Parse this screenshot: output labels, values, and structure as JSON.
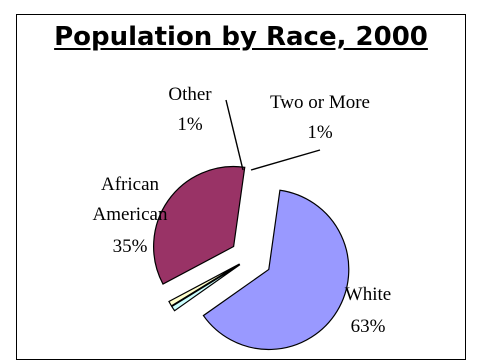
{
  "chart_data": {
    "type": "pie",
    "title": "Population by Race, 2000",
    "legend": "none",
    "slices": [
      {
        "label": "White",
        "percent_label": "63%",
        "value": 63,
        "color": "#9999ff",
        "exploded": true
      },
      {
        "label": "Two or More",
        "percent_label": "1%",
        "value": 1,
        "color": "#ccffff",
        "exploded": true
      },
      {
        "label": "Other",
        "percent_label": "1%",
        "value": 1,
        "color": "#ffffcc",
        "exploded": true
      },
      {
        "label": "African American",
        "label_lines": [
          "African",
          "American"
        ],
        "percent_label": "35%",
        "value": 35,
        "color": "#993366",
        "exploded": true
      }
    ]
  }
}
